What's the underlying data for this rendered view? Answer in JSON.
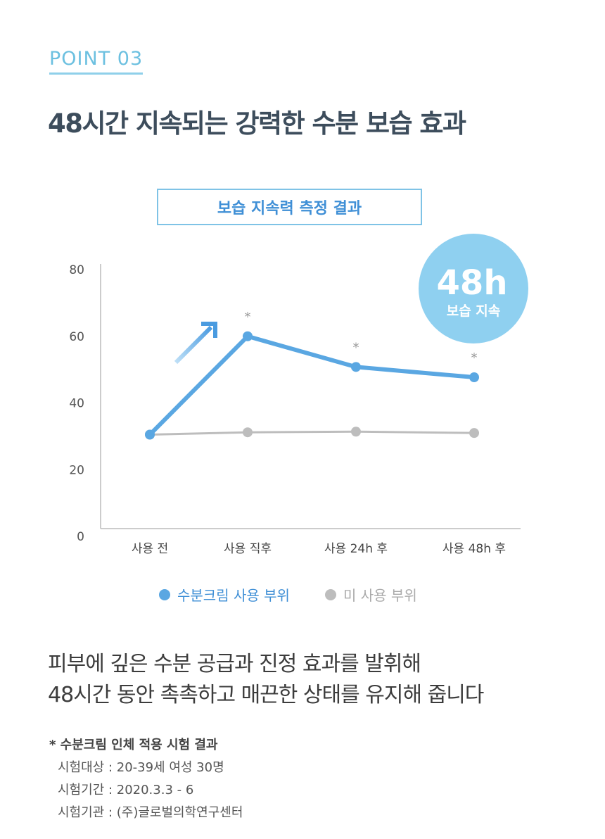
{
  "header": {
    "point_label": "POINT 03",
    "title": "48시간 지속되는 강력한 수분 보습 효과"
  },
  "chart_data": {
    "type": "line",
    "title": "보습 지속력 측정 결과",
    "categories": [
      "사용 전",
      "사용 직후",
      "사용 24h 후",
      "사용 48h 후"
    ],
    "series": [
      {
        "name": "수분크림 사용 부위",
        "color": "#5aa7e2",
        "values": [
          30.5,
          60,
          50.8,
          47.7
        ],
        "significant": [
          false,
          true,
          true,
          true
        ]
      },
      {
        "name": "미 사용 부위",
        "color": "#bdbdbd",
        "values": [
          30.5,
          31.2,
          31.4,
          31
        ]
      }
    ],
    "ylim": [
      0,
      80
    ],
    "yticks": [
      0,
      20,
      40,
      60,
      80
    ],
    "significance_mark": "*",
    "legend": "bottom",
    "badge": {
      "big": "48h",
      "small": "보습 지속",
      "color": "#8fd0f0"
    }
  },
  "body": {
    "line1": "피부에 깊은 수분 공급과 진정 효과를 발휘해",
    "line2": "48시간 동안 촉촉하고 매끈한 상태를 유지해 줍니다"
  },
  "notes": {
    "title": "* 수분크림 인체 적용 시험 결과",
    "subject": "시험대상 : 20-39세 여성 30명",
    "period": "시험기간 : 2020.3.3 - 6",
    "institution": "시험기관 : (주)글로벌의학연구센터"
  }
}
